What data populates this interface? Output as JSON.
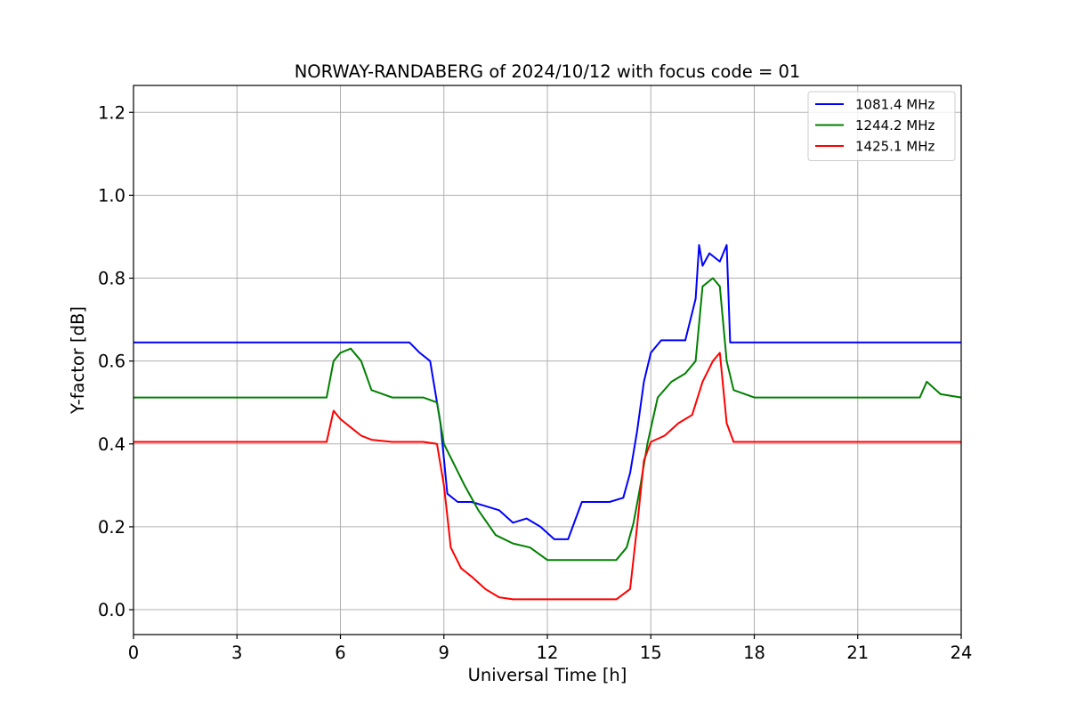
{
  "chart_data": {
    "type": "line",
    "title": "NORWAY-RANDABERG of 2024/10/12 with focus code = 01",
    "xlabel": "Universal Time [h]",
    "ylabel": "Y-factor [dB]",
    "xlim": [
      0,
      24
    ],
    "ylim": [
      -0.06,
      1.265
    ],
    "xticks": [
      0,
      3,
      6,
      9,
      12,
      15,
      18,
      21,
      24
    ],
    "xtick_labels": [
      "0",
      "3",
      "6",
      "9",
      "12",
      "15",
      "18",
      "21",
      "24"
    ],
    "yticks": [
      0.0,
      0.2,
      0.4,
      0.6,
      0.8,
      1.0,
      1.2
    ],
    "ytick_labels": [
      "0.0",
      "0.2",
      "0.4",
      "0.6",
      "0.8",
      "1.0",
      "1.2"
    ],
    "grid": true,
    "legend_position": "top-right",
    "series": [
      {
        "name": "1081.4 MHz",
        "color": "#0000ff",
        "x": [
          0,
          0.5,
          1,
          2,
          3,
          4,
          5,
          5.6,
          5.7,
          6.0,
          6.3,
          6.6,
          7.0,
          7.5,
          8.0,
          8.3,
          8.6,
          8.9,
          9.1,
          9.4,
          9.8,
          10.2,
          10.6,
          11.0,
          11.4,
          11.8,
          12.2,
          12.6,
          13.0,
          13.4,
          13.8,
          14.2,
          14.4,
          14.6,
          14.8,
          15.0,
          15.3,
          15.6,
          16.0,
          16.3,
          16.4,
          16.5,
          16.7,
          17.0,
          17.2,
          17.3,
          18,
          19,
          20,
          21,
          22,
          23,
          24
        ],
        "y": [
          0.645,
          0.645,
          0.645,
          0.645,
          0.645,
          0.645,
          0.645,
          0.645,
          0.645,
          0.645,
          0.645,
          0.645,
          0.645,
          0.645,
          0.645,
          0.62,
          0.6,
          0.45,
          0.28,
          0.26,
          0.26,
          0.25,
          0.24,
          0.21,
          0.22,
          0.2,
          0.17,
          0.17,
          0.26,
          0.26,
          0.26,
          0.27,
          0.33,
          0.43,
          0.55,
          0.62,
          0.65,
          0.65,
          0.65,
          0.75,
          0.88,
          0.83,
          0.86,
          0.84,
          0.88,
          0.645,
          0.645,
          0.645,
          0.645,
          0.645,
          0.645,
          0.645,
          0.645
        ]
      },
      {
        "name": "1244.2 MHz",
        "color": "#008000",
        "x": [
          0,
          0.5,
          1,
          2,
          3,
          4,
          5,
          5.6,
          5.8,
          6.0,
          6.3,
          6.6,
          6.9,
          7.5,
          8.0,
          8.4,
          8.8,
          9.0,
          9.3,
          9.6,
          10.0,
          10.5,
          11.0,
          11.5,
          12.0,
          12.4,
          12.8,
          13.2,
          13.6,
          14.0,
          14.3,
          14.5,
          14.7,
          14.9,
          15.2,
          15.6,
          16.0,
          16.3,
          16.5,
          16.8,
          17.0,
          17.2,
          17.4,
          18,
          19,
          20,
          21,
          22,
          22.8,
          23.0,
          23.4,
          24
        ],
        "y": [
          0.512,
          0.512,
          0.512,
          0.512,
          0.512,
          0.512,
          0.512,
          0.512,
          0.6,
          0.62,
          0.63,
          0.6,
          0.53,
          0.512,
          0.512,
          0.512,
          0.5,
          0.4,
          0.35,
          0.3,
          0.24,
          0.18,
          0.16,
          0.15,
          0.12,
          0.12,
          0.12,
          0.12,
          0.12,
          0.12,
          0.15,
          0.21,
          0.3,
          0.4,
          0.512,
          0.55,
          0.57,
          0.6,
          0.78,
          0.8,
          0.78,
          0.6,
          0.53,
          0.512,
          0.512,
          0.512,
          0.512,
          0.512,
          0.512,
          0.55,
          0.52,
          0.512
        ]
      },
      {
        "name": "1425.1 MHz",
        "color": "#ff0000",
        "x": [
          0,
          0.5,
          1,
          2,
          3,
          4,
          5,
          5.6,
          5.8,
          6.0,
          6.3,
          6.6,
          6.9,
          7.5,
          8.0,
          8.4,
          8.8,
          9.0,
          9.2,
          9.5,
          9.8,
          10.2,
          10.6,
          11.0,
          11.5,
          12.0,
          12.5,
          13.0,
          13.5,
          14.0,
          14.4,
          14.6,
          14.8,
          15.0,
          15.4,
          15.8,
          16.2,
          16.5,
          16.8,
          17.0,
          17.2,
          17.4,
          18,
          19,
          20,
          21,
          22,
          23,
          24
        ],
        "y": [
          0.405,
          0.405,
          0.405,
          0.405,
          0.405,
          0.405,
          0.405,
          0.405,
          0.48,
          0.46,
          0.44,
          0.42,
          0.41,
          0.405,
          0.405,
          0.405,
          0.4,
          0.3,
          0.15,
          0.1,
          0.08,
          0.05,
          0.03,
          0.025,
          0.025,
          0.025,
          0.025,
          0.025,
          0.025,
          0.025,
          0.05,
          0.2,
          0.36,
          0.405,
          0.42,
          0.45,
          0.47,
          0.55,
          0.6,
          0.62,
          0.45,
          0.405,
          0.405,
          0.405,
          0.405,
          0.405,
          0.405,
          0.405,
          0.405
        ]
      }
    ]
  }
}
